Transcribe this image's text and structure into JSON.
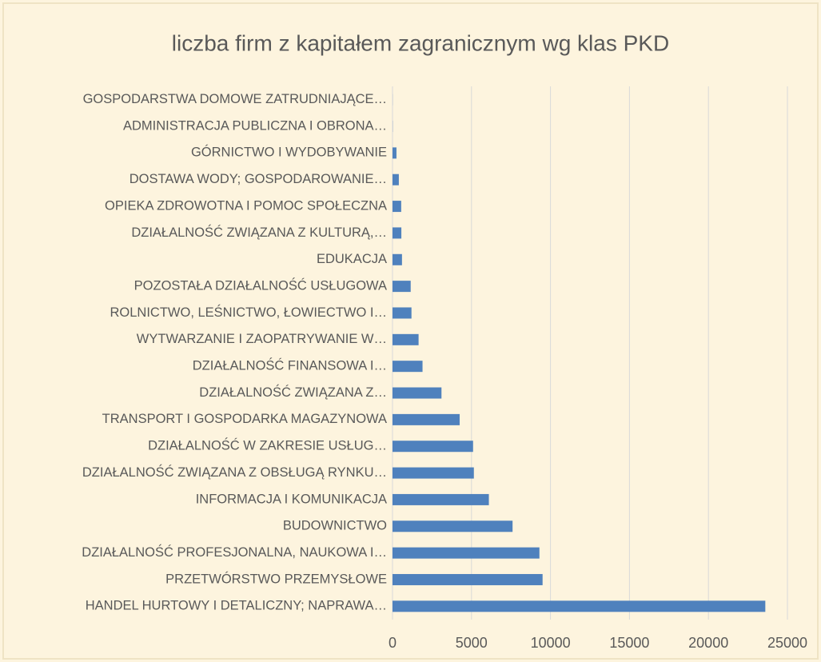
{
  "chart_data": {
    "type": "bar",
    "orientation": "horizontal",
    "title": "liczba firm z kapitałem zagranicznym wg  klas PKD",
    "categories": [
      "GOSPODARSTWA DOMOWE ZATRUDNIAJĄCE…",
      "ADMINISTRACJA PUBLICZNA I OBRONA…",
      "GÓRNICTWO I WYDOBYWANIE",
      "DOSTAWA WODY; GOSPODAROWANIE…",
      "OPIEKA ZDROWOTNA I POMOC SPOŁECZNA",
      "DZIAŁALNOŚĆ ZWIĄZANA Z KULTURĄ,…",
      "EDUKACJA",
      "POZOSTAŁA DZIAŁALNOŚĆ USŁUGOWA",
      "ROLNICTWO, LEŚNICTWO, ŁOWIECTWO I…",
      "WYTWARZANIE I ZAOPATRYWANIE W…",
      "DZIAŁALNOŚĆ FINANSOWA I…",
      "DZIAŁALNOŚĆ ZWIĄZANA Z…",
      "TRANSPORT I GOSPODARKA MAGAZYNOWA",
      "DZIAŁALNOŚĆ W ZAKRESIE USŁUG…",
      "DZIAŁALNOŚĆ ZWIĄZANA Z OBSŁUGĄ RYNKU…",
      "INFORMACJA I KOMUNIKACJA",
      "BUDOWNICTWO",
      "DZIAŁALNOŚĆ PROFESJONALNA, NAUKOWA I…",
      "PRZETWÓRSTWO PRZEMYSŁOWE",
      "HANDEL HURTOWY I DETALICZNY; NAPRAWA…"
    ],
    "values": [
      5,
      10,
      250,
      400,
      550,
      560,
      600,
      1150,
      1200,
      1650,
      1900,
      3100,
      4250,
      5100,
      5150,
      6100,
      7600,
      9300,
      9500,
      23600
    ],
    "color": "#4f81bd",
    "xlim": [
      0,
      25000
    ],
    "xticks": [
      0,
      5000,
      10000,
      15000,
      20000,
      25000
    ],
    "grid": true
  }
}
